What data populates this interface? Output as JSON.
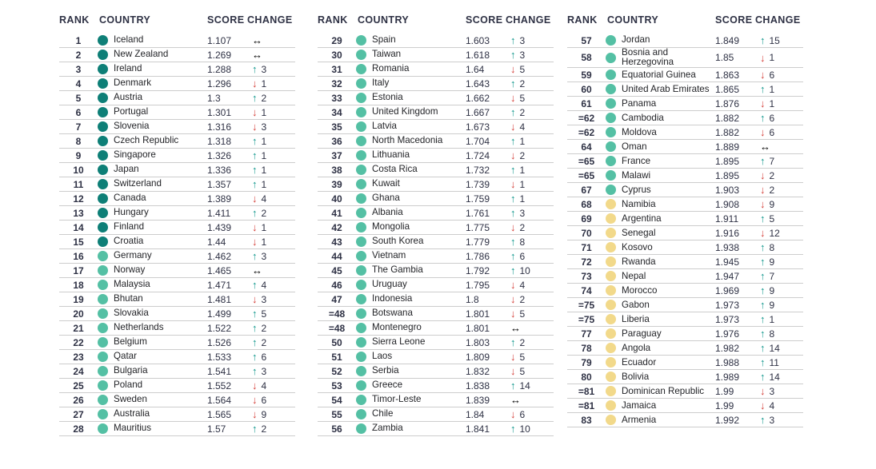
{
  "palette": {
    "header_text": "#2e3144",
    "country_text": "#232428",
    "row_border": "#cdcdcd",
    "tier_very_high": "#0e7f77",
    "tier_high": "#54c0a4",
    "tier_medium": "#f2d98a",
    "arrow_up": "#0e968b",
    "arrow_down": "#d5403a",
    "arrow_same": "#000000"
  },
  "icons": {
    "up-arrow-icon": "↑",
    "down-arrow-icon": "↓",
    "both-arrow-icon": "↔",
    "tier-dot-icon": "●"
  },
  "chart_data": {
    "type": "table",
    "headers": {
      "rank": "RANK",
      "country": "COUNTRY",
      "score": "SCORE",
      "change": "CHANGE"
    },
    "columns": [
      {
        "rows": [
          {
            "rank": "1",
            "country": "Iceland",
            "score": "1.107",
            "dir": "same",
            "delta": "",
            "tier": "very-high"
          },
          {
            "rank": "2",
            "country": "New Zealand",
            "score": "1.269",
            "dir": "same",
            "delta": "",
            "tier": "very-high"
          },
          {
            "rank": "3",
            "country": "Ireland",
            "score": "1.288",
            "dir": "up",
            "delta": "3",
            "tier": "very-high"
          },
          {
            "rank": "4",
            "country": "Denmark",
            "score": "1.296",
            "dir": "down",
            "delta": "1",
            "tier": "very-high"
          },
          {
            "rank": "5",
            "country": "Austria",
            "score": "1.3",
            "dir": "up",
            "delta": "2",
            "tier": "very-high"
          },
          {
            "rank": "6",
            "country": "Portugal",
            "score": "1.301",
            "dir": "down",
            "delta": "1",
            "tier": "very-high"
          },
          {
            "rank": "7",
            "country": "Slovenia",
            "score": "1.316",
            "dir": "down",
            "delta": "3",
            "tier": "very-high"
          },
          {
            "rank": "8",
            "country": "Czech Republic",
            "score": "1.318",
            "dir": "up",
            "delta": "1",
            "tier": "very-high"
          },
          {
            "rank": "9",
            "country": "Singapore",
            "score": "1.326",
            "dir": "up",
            "delta": "1",
            "tier": "very-high"
          },
          {
            "rank": "10",
            "country": "Japan",
            "score": "1.336",
            "dir": "up",
            "delta": "1",
            "tier": "very-high"
          },
          {
            "rank": "11",
            "country": "Switzerland",
            "score": "1.357",
            "dir": "up",
            "delta": "1",
            "tier": "very-high"
          },
          {
            "rank": "12",
            "country": "Canada",
            "score": "1.389",
            "dir": "down",
            "delta": "4",
            "tier": "very-high"
          },
          {
            "rank": "13",
            "country": "Hungary",
            "score": "1.411",
            "dir": "up",
            "delta": "2",
            "tier": "very-high"
          },
          {
            "rank": "14",
            "country": "Finland",
            "score": "1.439",
            "dir": "down",
            "delta": "1",
            "tier": "very-high"
          },
          {
            "rank": "15",
            "country": "Croatia",
            "score": "1.44",
            "dir": "down",
            "delta": "1",
            "tier": "very-high"
          },
          {
            "rank": "16",
            "country": "Germany",
            "score": "1.462",
            "dir": "up",
            "delta": "3",
            "tier": "high"
          },
          {
            "rank": "17",
            "country": "Norway",
            "score": "1.465",
            "dir": "same",
            "delta": "",
            "tier": "high"
          },
          {
            "rank": "18",
            "country": "Malaysia",
            "score": "1.471",
            "dir": "up",
            "delta": "4",
            "tier": "high"
          },
          {
            "rank": "19",
            "country": "Bhutan",
            "score": "1.481",
            "dir": "down",
            "delta": "3",
            "tier": "high"
          },
          {
            "rank": "20",
            "country": "Slovakia",
            "score": "1.499",
            "dir": "up",
            "delta": "5",
            "tier": "high"
          },
          {
            "rank": "21",
            "country": "Netherlands",
            "score": "1.522",
            "dir": "up",
            "delta": "2",
            "tier": "high"
          },
          {
            "rank": "22",
            "country": "Belgium",
            "score": "1.526",
            "dir": "up",
            "delta": "2",
            "tier": "high"
          },
          {
            "rank": "23",
            "country": "Qatar",
            "score": "1.533",
            "dir": "up",
            "delta": "6",
            "tier": "high"
          },
          {
            "rank": "24",
            "country": "Bulgaria",
            "score": "1.541",
            "dir": "up",
            "delta": "3",
            "tier": "high"
          },
          {
            "rank": "25",
            "country": "Poland",
            "score": "1.552",
            "dir": "down",
            "delta": "4",
            "tier": "high"
          },
          {
            "rank": "26",
            "country": "Sweden",
            "score": "1.564",
            "dir": "down",
            "delta": "6",
            "tier": "high"
          },
          {
            "rank": "27",
            "country": "Australia",
            "score": "1.565",
            "dir": "down",
            "delta": "9",
            "tier": "high"
          },
          {
            "rank": "28",
            "country": "Mauritius",
            "score": "1.57",
            "dir": "up",
            "delta": "2",
            "tier": "high"
          }
        ]
      },
      {
        "rows": [
          {
            "rank": "29",
            "country": "Spain",
            "score": "1.603",
            "dir": "up",
            "delta": "3",
            "tier": "high"
          },
          {
            "rank": "30",
            "country": "Taiwan",
            "score": "1.618",
            "dir": "up",
            "delta": "3",
            "tier": "high"
          },
          {
            "rank": "31",
            "country": "Romania",
            "score": "1.64",
            "dir": "down",
            "delta": "5",
            "tier": "high"
          },
          {
            "rank": "32",
            "country": "Italy",
            "score": "1.643",
            "dir": "up",
            "delta": "2",
            "tier": "high"
          },
          {
            "rank": "33",
            "country": "Estonia",
            "score": "1.662",
            "dir": "down",
            "delta": "5",
            "tier": "high"
          },
          {
            "rank": "34",
            "country": "United Kingdom",
            "score": "1.667",
            "dir": "up",
            "delta": "2",
            "tier": "high"
          },
          {
            "rank": "35",
            "country": "Latvia",
            "score": "1.673",
            "dir": "down",
            "delta": "4",
            "tier": "high"
          },
          {
            "rank": "36",
            "country": "North Macedonia",
            "score": "1.704",
            "dir": "up",
            "delta": "1",
            "tier": "high"
          },
          {
            "rank": "37",
            "country": "Lithuania",
            "score": "1.724",
            "dir": "down",
            "delta": "2",
            "tier": "high"
          },
          {
            "rank": "38",
            "country": "Costa Rica",
            "score": "1.732",
            "dir": "up",
            "delta": "1",
            "tier": "high"
          },
          {
            "rank": "39",
            "country": "Kuwait",
            "score": "1.739",
            "dir": "down",
            "delta": "1",
            "tier": "high"
          },
          {
            "rank": "40",
            "country": "Ghana",
            "score": "1.759",
            "dir": "up",
            "delta": "1",
            "tier": "high"
          },
          {
            "rank": "41",
            "country": "Albania",
            "score": "1.761",
            "dir": "up",
            "delta": "3",
            "tier": "high"
          },
          {
            "rank": "42",
            "country": "Mongolia",
            "score": "1.775",
            "dir": "down",
            "delta": "2",
            "tier": "high"
          },
          {
            "rank": "43",
            "country": "South Korea",
            "score": "1.779",
            "dir": "up",
            "delta": "8",
            "tier": "high"
          },
          {
            "rank": "44",
            "country": "Vietnam",
            "score": "1.786",
            "dir": "up",
            "delta": "6",
            "tier": "high"
          },
          {
            "rank": "45",
            "country": "The Gambia",
            "score": "1.792",
            "dir": "up",
            "delta": "10",
            "tier": "high"
          },
          {
            "rank": "46",
            "country": "Uruguay",
            "score": "1.795",
            "dir": "down",
            "delta": "4",
            "tier": "high"
          },
          {
            "rank": "47",
            "country": "Indonesia",
            "score": "1.8",
            "dir": "down",
            "delta": "2",
            "tier": "high"
          },
          {
            "rank": "=48",
            "country": "Botswana",
            "score": "1.801",
            "dir": "down",
            "delta": "5",
            "tier": "high"
          },
          {
            "rank": "=48",
            "country": "Montenegro",
            "score": "1.801",
            "dir": "same",
            "delta": "",
            "tier": "high"
          },
          {
            "rank": "50",
            "country": "Sierra Leone",
            "score": "1.803",
            "dir": "up",
            "delta": "2",
            "tier": "high"
          },
          {
            "rank": "51",
            "country": "Laos",
            "score": "1.809",
            "dir": "down",
            "delta": "5",
            "tier": "high"
          },
          {
            "rank": "52",
            "country": "Serbia",
            "score": "1.832",
            "dir": "down",
            "delta": "5",
            "tier": "high"
          },
          {
            "rank": "53",
            "country": "Greece",
            "score": "1.838",
            "dir": "up",
            "delta": "14",
            "tier": "high"
          },
          {
            "rank": "54",
            "country": "Timor-Leste",
            "score": "1.839",
            "dir": "same",
            "delta": "",
            "tier": "high"
          },
          {
            "rank": "55",
            "country": "Chile",
            "score": "1.84",
            "dir": "down",
            "delta": "6",
            "tier": "high"
          },
          {
            "rank": "56",
            "country": "Zambia",
            "score": "1.841",
            "dir": "up",
            "delta": "10",
            "tier": "high"
          }
        ]
      },
      {
        "rows": [
          {
            "rank": "57",
            "country": "Jordan",
            "score": "1.849",
            "dir": "up",
            "delta": "15",
            "tier": "high"
          },
          {
            "rank": "58",
            "country": "Bosnia and Herzegovina",
            "score": "1.85",
            "dir": "down",
            "delta": "1",
            "tier": "high"
          },
          {
            "rank": "59",
            "country": "Equatorial Guinea",
            "score": "1.863",
            "dir": "down",
            "delta": "6",
            "tier": "high"
          },
          {
            "rank": "60",
            "country": "United Arab Emirates",
            "score": "1.865",
            "dir": "up",
            "delta": "1",
            "tier": "high"
          },
          {
            "rank": "61",
            "country": "Panama",
            "score": "1.876",
            "dir": "down",
            "delta": "1",
            "tier": "high"
          },
          {
            "rank": "=62",
            "country": "Cambodia",
            "score": "1.882",
            "dir": "up",
            "delta": "6",
            "tier": "high"
          },
          {
            "rank": "=62",
            "country": "Moldova",
            "score": "1.882",
            "dir": "down",
            "delta": "6",
            "tier": "high"
          },
          {
            "rank": "64",
            "country": "Oman",
            "score": "1.889",
            "dir": "same",
            "delta": "",
            "tier": "high"
          },
          {
            "rank": "=65",
            "country": "France",
            "score": "1.895",
            "dir": "up",
            "delta": "7",
            "tier": "high"
          },
          {
            "rank": "=65",
            "country": "Malawi",
            "score": "1.895",
            "dir": "down",
            "delta": "2",
            "tier": "high"
          },
          {
            "rank": "67",
            "country": "Cyprus",
            "score": "1.903",
            "dir": "down",
            "delta": "2",
            "tier": "high"
          },
          {
            "rank": "68",
            "country": "Namibia",
            "score": "1.908",
            "dir": "down",
            "delta": "9",
            "tier": "medium"
          },
          {
            "rank": "69",
            "country": "Argentina",
            "score": "1.911",
            "dir": "up",
            "delta": "5",
            "tier": "medium"
          },
          {
            "rank": "70",
            "country": "Senegal",
            "score": "1.916",
            "dir": "down",
            "delta": "12",
            "tier": "medium"
          },
          {
            "rank": "71",
            "country": "Kosovo",
            "score": "1.938",
            "dir": "up",
            "delta": "8",
            "tier": "medium"
          },
          {
            "rank": "72",
            "country": "Rwanda",
            "score": "1.945",
            "dir": "up",
            "delta": "9",
            "tier": "medium"
          },
          {
            "rank": "73",
            "country": "Nepal",
            "score": "1.947",
            "dir": "up",
            "delta": "7",
            "tier": "medium"
          },
          {
            "rank": "74",
            "country": "Morocco",
            "score": "1.969",
            "dir": "up",
            "delta": "9",
            "tier": "medium"
          },
          {
            "rank": "=75",
            "country": "Gabon",
            "score": "1.973",
            "dir": "up",
            "delta": "9",
            "tier": "medium"
          },
          {
            "rank": "=75",
            "country": "Liberia",
            "score": "1.973",
            "dir": "up",
            "delta": "1",
            "tier": "medium"
          },
          {
            "rank": "77",
            "country": "Paraguay",
            "score": "1.976",
            "dir": "up",
            "delta": "8",
            "tier": "medium"
          },
          {
            "rank": "78",
            "country": "Angola",
            "score": "1.982",
            "dir": "up",
            "delta": "14",
            "tier": "medium"
          },
          {
            "rank": "79",
            "country": "Ecuador",
            "score": "1.988",
            "dir": "up",
            "delta": "11",
            "tier": "medium"
          },
          {
            "rank": "80",
            "country": "Bolivia",
            "score": "1.989",
            "dir": "up",
            "delta": "14",
            "tier": "medium"
          },
          {
            "rank": "=81",
            "country": "Dominican Republic",
            "score": "1.99",
            "dir": "down",
            "delta": "3",
            "tier": "medium"
          },
          {
            "rank": "=81",
            "country": "Jamaica",
            "score": "1.99",
            "dir": "down",
            "delta": "4",
            "tier": "medium"
          },
          {
            "rank": "83",
            "country": "Armenia",
            "score": "1.992",
            "dir": "up",
            "delta": "3",
            "tier": "medium"
          }
        ]
      }
    ]
  }
}
